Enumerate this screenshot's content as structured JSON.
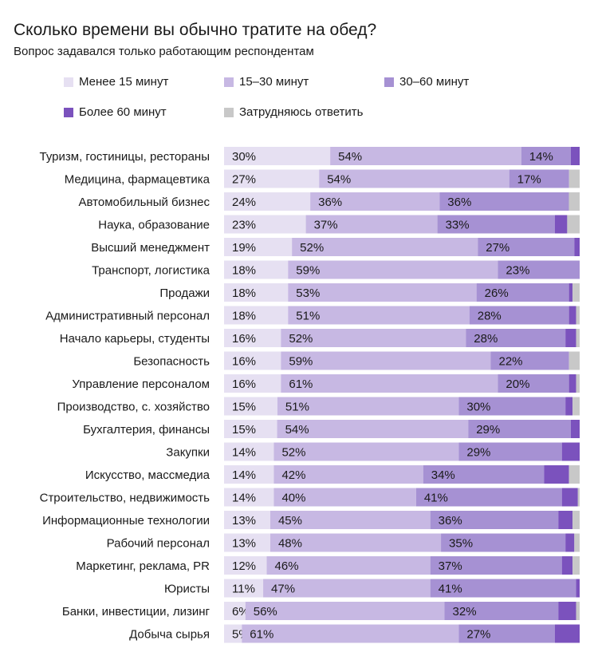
{
  "chart_data": {
    "type": "bar",
    "orientation": "horizontal",
    "stacked": true,
    "normalized": true,
    "title": "Сколько времени вы обычно тратите на обед?",
    "subtitle": "Вопрос задавался только работающим респондентам",
    "grid": false,
    "legend_position": "top",
    "xlim": [
      0,
      100
    ],
    "categories": [
      "Туризм, гостиницы, рестораны",
      "Медицина, фармацевтика",
      "Автомобильный бизнес",
      "Наука, образование",
      "Высший менеджмент",
      "Транспорт, логистика",
      "Продажи",
      "Административный персонал",
      "Начало карьеры, студенты",
      "Безопасность",
      "Управление персоналом",
      "Производство, с. хозяйство",
      "Бухгалтерия, финансы",
      "Закупки",
      "Искусство, массмедиа",
      "Строительство, недвижимость",
      "Информационные технологии",
      "Рабочий персонал",
      "Маркетинг, реклама, PR",
      "Юристы",
      "Банки, инвестиции, лизинг",
      "Добыча сырья"
    ],
    "series": [
      {
        "name": "Менее 15 минут",
        "color": "#e6e0f2",
        "values": [
          30,
          27,
          24,
          23,
          19,
          18,
          18,
          18,
          16,
          16,
          16,
          15,
          15,
          14,
          14,
          14,
          13,
          13,
          12,
          11,
          6,
          5
        ]
      },
      {
        "name": "15–30 минут",
        "color": "#c7b8e3",
        "values": [
          54,
          54,
          36,
          37,
          52,
          59,
          53,
          51,
          52,
          59,
          61,
          51,
          54,
          52,
          42,
          40,
          45,
          48,
          46,
          47,
          56,
          61
        ]
      },
      {
        "name": "30–60 минут",
        "color": "#a691d3",
        "values": [
          14,
          17,
          36,
          33,
          27,
          23,
          26,
          28,
          28,
          22,
          20,
          30,
          29,
          29,
          34,
          41,
          36,
          35,
          37,
          41,
          32,
          27
        ]
      },
      {
        "name": "Более 60 минут",
        "color": "#7b52bd",
        "values": [
          2.5,
          0,
          0,
          3.5,
          1.5,
          0,
          1,
          2,
          3,
          0,
          2,
          2,
          2.5,
          5,
          7,
          4.5,
          4,
          2.5,
          3,
          1,
          5,
          7
        ]
      },
      {
        "name": "Затрудняюсь ответить",
        "color": "#c8c8c8",
        "values": [
          0,
          3,
          3,
          3.5,
          0,
          0,
          2,
          1,
          1,
          3,
          1,
          2,
          0,
          0,
          3,
          0.5,
          2,
          1.5,
          2,
          0,
          1,
          0
        ]
      }
    ],
    "labeled_series": [
      0,
      1,
      2
    ]
  }
}
